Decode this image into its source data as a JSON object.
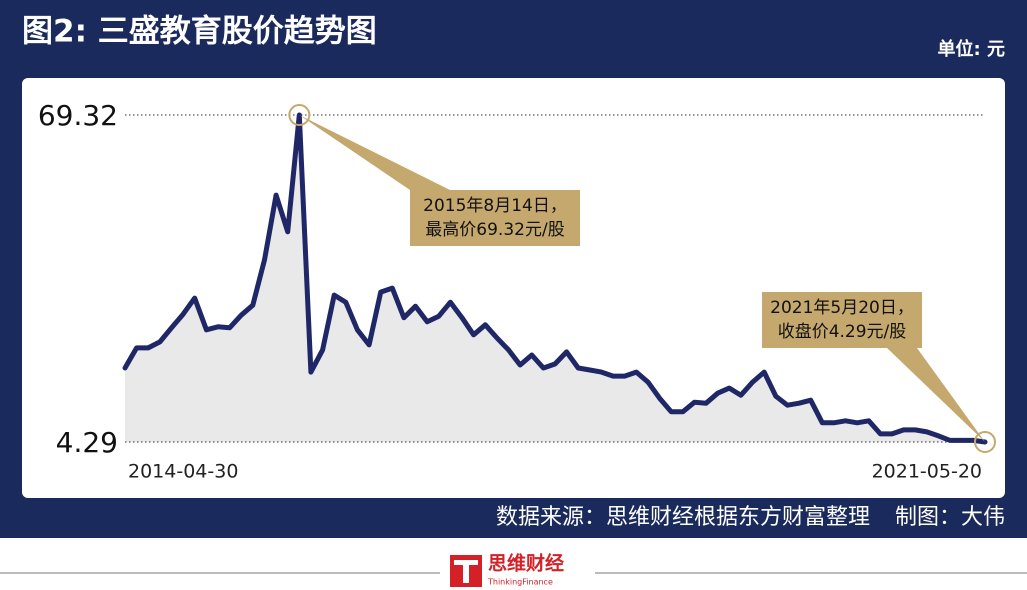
{
  "chart_data": {
    "type": "line",
    "title": "图2: 三盛教育股价趋势图",
    "unit": "单位: 元",
    "source": "数据来源：思维财经根据东方财富整理",
    "credit": "制图：大伟",
    "brand": "思维财经",
    "brand_en": "ThinkingFinance",
    "annotations": [
      {
        "lines": [
          "2015年8月14日，",
          "最高价69.32元/股"
        ]
      },
      {
        "lines": [
          "2021年5月20日，",
          "收盘价4.29元/股"
        ]
      }
    ],
    "categories": [
      "2014-04-30",
      null,
      null,
      null,
      null,
      null,
      null,
      null,
      null,
      null,
      null,
      null,
      null,
      null,
      null,
      null,
      null,
      null,
      null,
      null,
      null,
      null,
      null,
      null,
      null,
      null,
      null,
      null,
      null,
      null,
      null,
      null,
      null,
      null,
      null,
      null,
      null,
      null,
      null,
      null,
      null,
      null,
      null,
      null,
      null,
      null,
      null,
      null,
      null,
      null,
      null,
      null,
      null,
      null,
      null,
      null,
      null,
      null,
      null,
      null,
      null,
      null,
      null,
      null,
      null,
      null,
      null,
      null,
      null,
      null,
      null,
      null,
      null,
      null,
      "2021-05-20"
    ],
    "values": [
      19.0,
      23.0,
      23.0,
      24.2,
      27.0,
      29.7,
      32.9,
      26.6,
      27.2,
      27.0,
      29.5,
      31.5,
      40.5,
      53.4,
      46.1,
      69.32,
      18.2,
      22.6,
      33.5,
      32.1,
      26.6,
      23.6,
      34.1,
      34.9,
      29.0,
      31.3,
      28.2,
      29.3,
      32.1,
      29.0,
      25.6,
      27.6,
      25.0,
      22.6,
      19.6,
      21.6,
      19.0,
      19.8,
      22.2,
      19.0,
      18.6,
      18.2,
      17.4,
      17.4,
      18.2,
      16.2,
      13.0,
      10.3,
      10.3,
      12.2,
      12.0,
      14.0,
      15.0,
      13.6,
      16.2,
      18.2,
      13.4,
      11.6,
      12.0,
      12.6,
      8.1,
      8.1,
      8.5,
      8.1,
      8.5,
      5.9,
      5.9,
      6.7,
      6.7,
      6.3,
      5.5,
      4.6,
      4.6,
      4.6,
      4.29
    ],
    "color": "#1f2766",
    "area_color": "#e9e9e9",
    "ylim": [
      4.29,
      69.32
    ],
    "yticks": [
      4.29,
      69.32
    ],
    "grid": true
  }
}
